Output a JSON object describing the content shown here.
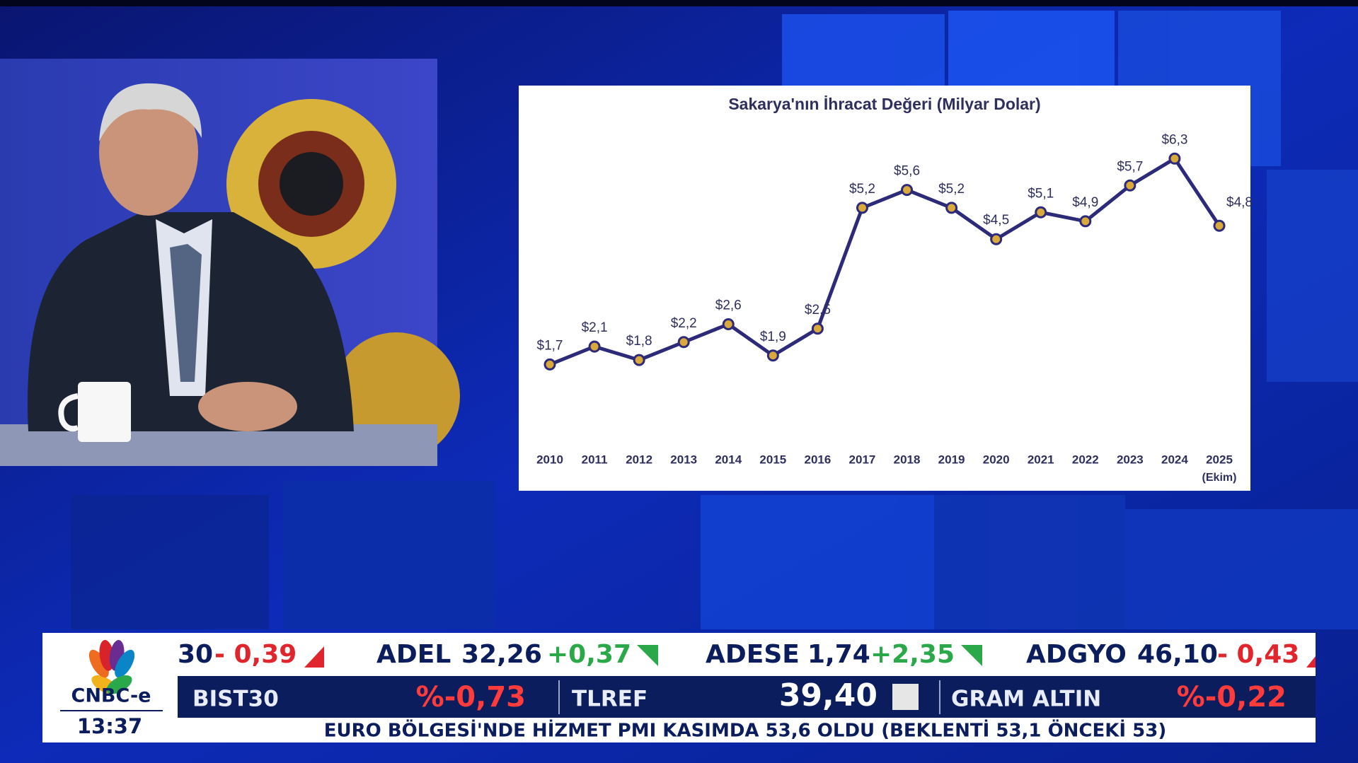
{
  "chart_data": {
    "type": "line",
    "title": "Sakarya'nın İhracat Değeri (Milyar Dolar)",
    "categories": [
      "2010",
      "2011",
      "2012",
      "2013",
      "2014",
      "2015",
      "2016",
      "2017",
      "2018",
      "2019",
      "2020",
      "2021",
      "2022",
      "2023",
      "2024",
      "2025"
    ],
    "category_note": "(Ekim)",
    "values": [
      1.7,
      2.1,
      1.8,
      2.2,
      2.6,
      1.9,
      2.5,
      5.2,
      5.6,
      5.2,
      4.5,
      5.1,
      4.9,
      5.7,
      6.3,
      4.8
    ],
    "value_labels": [
      "$1,7",
      "$2,1",
      "$1,8",
      "$2,2",
      "$2,6",
      "$1,9",
      "$2,5",
      "$5,2",
      "$5,6",
      "$5,2",
      "$4,5",
      "$5,1",
      "$4,9",
      "$5,7",
      "$6,3",
      "$4,8"
    ],
    "color": "#2e2a7a",
    "marker_color": "#d9a93b",
    "ylim": [
      0,
      7
    ]
  },
  "ticker": [
    {
      "symbol": "30",
      "change": "- 0,39"
    },
    {
      "symbol": "ADEL",
      "price": "32,26",
      "change": "+0,37"
    },
    {
      "symbol": "ADESE",
      "price": "1,74",
      "change": "+2,35"
    },
    {
      "symbol": "ADGYO",
      "price": "46,10",
      "change": "- 0,43"
    }
  ],
  "markets": [
    {
      "name": "BIST30",
      "value": "%-0,73"
    },
    {
      "name": "TLREF",
      "value": "39,40"
    },
    {
      "name": "GRAM ALTIN",
      "value": "%-0,22"
    }
  ],
  "headline": "EURO BÖLGESİ'NDE HİZMET PMI KASIMDA 53,6 OLDU (BEKLENTİ 53,1 ÖNCEKİ 53)",
  "logo": "CNBC-e",
  "time": "13:37"
}
